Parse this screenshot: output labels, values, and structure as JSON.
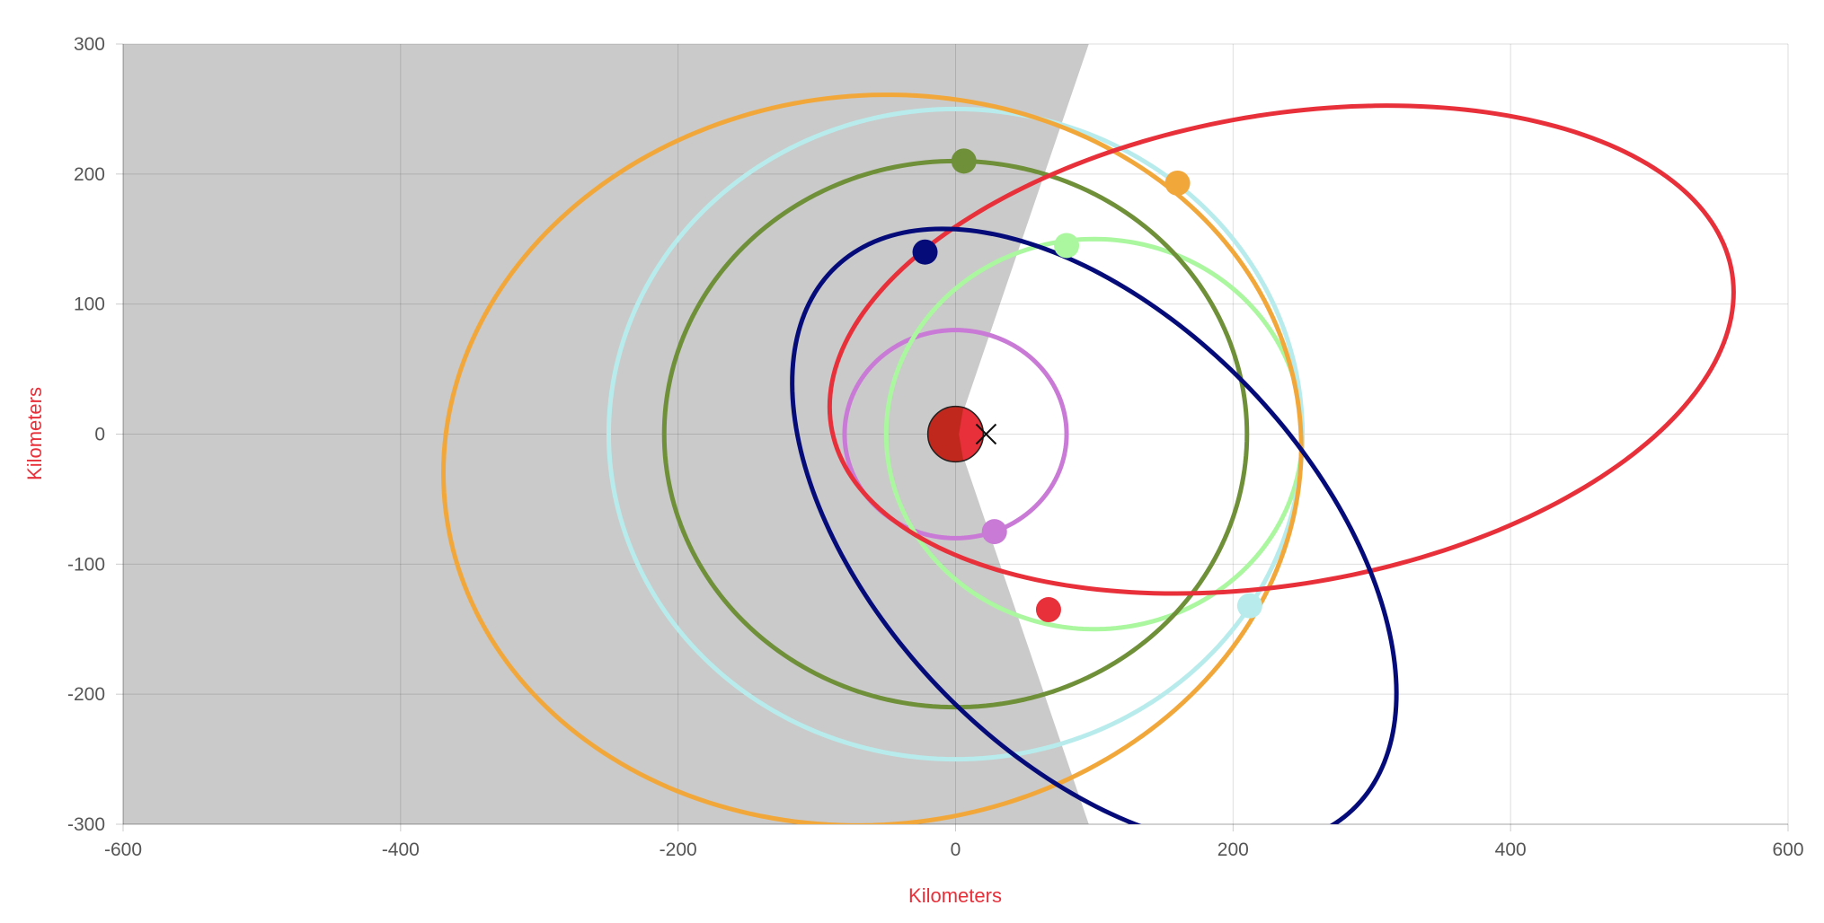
{
  "chart_data": {
    "type": "scatter",
    "title": "",
    "xlabel": "Kilometers",
    "ylabel": "Kilometers",
    "axis_title_color": "#e8303a",
    "xlim": [
      -600,
      600
    ],
    "ylim": [
      -300,
      300
    ],
    "x_ticks": [
      -600,
      -400,
      -200,
      0,
      200,
      400,
      600
    ],
    "y_ticks": [
      -300,
      -200,
      -100,
      0,
      100,
      200,
      300
    ],
    "x_tick_labels": [
      "-600",
      "-400",
      "-200",
      "0",
      "200",
      "400",
      "600"
    ],
    "y_tick_labels": [
      "-300",
      "-200",
      "-100",
      "0",
      "100",
      "200",
      "300"
    ],
    "grid": true,
    "shadow": {
      "color": "#cacaca",
      "polygon": [
        [
          -600,
          300
        ],
        [
          96,
          300
        ],
        [
          0,
          0
        ],
        [
          96,
          -300
        ],
        [
          -600,
          -300
        ]
      ]
    },
    "central_body": {
      "x": 0,
      "y": 0,
      "radius": 20,
      "color": "#c0281e",
      "lit_color": "#e8303a"
    },
    "marker": {
      "x": 22,
      "y": 0,
      "symbol": "x"
    },
    "orbits": [
      {
        "color": "#c97ad6",
        "cx": 0,
        "cy": 0,
        "a": 80,
        "b": 80,
        "rotation_deg": 0,
        "body": {
          "x": 28,
          "y": -75
        }
      },
      {
        "color": "#aaf7a0",
        "cx": 100,
        "cy": 0,
        "a": 150,
        "b": 150,
        "rotation_deg": 0,
        "body": {
          "x": 80,
          "y": 145
        }
      },
      {
        "color": "#6f8f38",
        "cx": 0,
        "cy": 0,
        "a": 210,
        "b": 210,
        "rotation_deg": 0,
        "body": {
          "x": 6,
          "y": 210
        }
      },
      {
        "color": "#b8ecec",
        "cx": 0,
        "cy": 0,
        "a": 250,
        "b": 250,
        "rotation_deg": 0,
        "body": {
          "x": 212,
          "y": -132
        }
      },
      {
        "color": "#f2a73b",
        "cx": -60,
        "cy": -20,
        "a": 310,
        "b": 280,
        "rotation_deg": 10,
        "body": {
          "x": 160,
          "y": 193
        }
      },
      {
        "color": "#e8303a",
        "cx": 235,
        "cy": 65,
        "a": 330,
        "b": 180,
        "rotation_deg": 11,
        "body": {
          "x": 67,
          "y": -135
        }
      },
      {
        "color": "#050c7a",
        "cx": 100,
        "cy": -80,
        "a": 280,
        "b": 160,
        "rotation_deg": -50,
        "body": {
          "x": -22,
          "y": 140
        }
      }
    ]
  }
}
